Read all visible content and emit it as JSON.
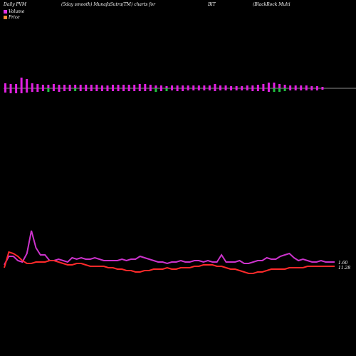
{
  "header": {
    "left": "Daily PVM",
    "mid": "(5day smooth) MunafaSutra(TM) charts for",
    "ticker": "BIT",
    "company": "(BlackRock Multi"
  },
  "legend": [
    {
      "label": "Volume",
      "color": "#e830e8"
    },
    {
      "label": "Price",
      "color": "#ff8c3a"
    }
  ],
  "colors": {
    "background": "#000000",
    "volume_up": "#e020e0",
    "volume_down": "#20c040",
    "price": "#ff2a2a",
    "pvm": "#cc33cc",
    "baseline": "#cccccc",
    "label": "#ffffff"
  },
  "chart_data": {
    "type": "line",
    "volume_bars": [
      {
        "up": 7,
        "down": 6,
        "dir": "up"
      },
      {
        "up": 6,
        "down": 7,
        "dir": "up"
      },
      {
        "up": 6,
        "down": 7,
        "dir": "up"
      },
      {
        "up": 15,
        "down": 7,
        "dir": "up"
      },
      {
        "up": 13,
        "down": 6,
        "dir": "up"
      },
      {
        "up": 7,
        "down": 5,
        "dir": "up"
      },
      {
        "up": 6,
        "down": 5,
        "dir": "up"
      },
      {
        "up": 5,
        "down": 4,
        "dir": "up"
      },
      {
        "up": 5,
        "down": 5,
        "dir": "down"
      },
      {
        "up": 6,
        "down": 4,
        "dir": "up"
      },
      {
        "up": 5,
        "down": 5,
        "dir": "up"
      },
      {
        "up": 5,
        "down": 4,
        "dir": "up"
      },
      {
        "up": 5,
        "down": 4,
        "dir": "up"
      },
      {
        "up": 5,
        "down": 4,
        "dir": "down"
      },
      {
        "up": 5,
        "down": 4,
        "dir": "up"
      },
      {
        "up": 5,
        "down": 4,
        "dir": "up"
      },
      {
        "up": 5,
        "down": 4,
        "dir": "up"
      },
      {
        "up": 5,
        "down": 4,
        "dir": "up"
      },
      {
        "up": 4,
        "down": 4,
        "dir": "up"
      },
      {
        "up": 4,
        "down": 4,
        "dir": "up"
      },
      {
        "up": 5,
        "down": 4,
        "dir": "up"
      },
      {
        "up": 5,
        "down": 4,
        "dir": "up"
      },
      {
        "up": 5,
        "down": 4,
        "dir": "up"
      },
      {
        "up": 5,
        "down": 4,
        "dir": "up"
      },
      {
        "up": 5,
        "down": 4,
        "dir": "up"
      },
      {
        "up": 6,
        "down": 4,
        "dir": "up"
      },
      {
        "up": 6,
        "down": 4,
        "dir": "up"
      },
      {
        "up": 5,
        "down": 4,
        "dir": "up"
      },
      {
        "up": 4,
        "down": 5,
        "dir": "down"
      },
      {
        "up": 4,
        "down": 4,
        "dir": "up"
      },
      {
        "up": 3,
        "down": 4,
        "dir": "down"
      },
      {
        "up": 4,
        "down": 3,
        "dir": "up"
      },
      {
        "up": 4,
        "down": 4,
        "dir": "up"
      },
      {
        "up": 4,
        "down": 4,
        "dir": "up"
      },
      {
        "up": 4,
        "down": 3,
        "dir": "up"
      },
      {
        "up": 4,
        "down": 3,
        "dir": "up"
      },
      {
        "up": 4,
        "down": 3,
        "dir": "up"
      },
      {
        "up": 4,
        "down": 3,
        "dir": "up"
      },
      {
        "up": 4,
        "down": 3,
        "dir": "up"
      },
      {
        "up": 6,
        "down": 4,
        "dir": "up"
      },
      {
        "up": 4,
        "down": 3,
        "dir": "up"
      },
      {
        "up": 4,
        "down": 3,
        "dir": "up"
      },
      {
        "up": 3,
        "down": 3,
        "dir": "up"
      },
      {
        "up": 3,
        "down": 3,
        "dir": "up"
      },
      {
        "up": 3,
        "down": 3,
        "dir": "up"
      },
      {
        "up": 4,
        "down": 3,
        "dir": "up"
      },
      {
        "up": 4,
        "down": 4,
        "dir": "up"
      },
      {
        "up": 5,
        "down": 4,
        "dir": "up"
      },
      {
        "up": 6,
        "down": 4,
        "dir": "up"
      },
      {
        "up": 8,
        "down": 5,
        "dir": "up"
      },
      {
        "up": 8,
        "down": 5,
        "dir": "down"
      },
      {
        "up": 6,
        "down": 5,
        "dir": "down"
      },
      {
        "up": 5,
        "down": 4,
        "dir": "down"
      },
      {
        "up": 4,
        "down": 3,
        "dir": "up"
      },
      {
        "up": 4,
        "down": 3,
        "dir": "up"
      },
      {
        "up": 4,
        "down": 3,
        "dir": "up"
      },
      {
        "up": 4,
        "down": 3,
        "dir": "up"
      },
      {
        "up": 3,
        "down": 3,
        "dir": "up"
      },
      {
        "up": 3,
        "down": 3,
        "dir": "up"
      },
      {
        "up": 2,
        "down": 2,
        "dir": "up"
      }
    ],
    "pvm_line": [
      372,
      360,
      360,
      366,
      368,
      356,
      324,
      348,
      358,
      358,
      366,
      366,
      364,
      366,
      368,
      362,
      364,
      362,
      364,
      364,
      362,
      364,
      366,
      366,
      366,
      366,
      364,
      366,
      364,
      364,
      360,
      362,
      364,
      366,
      368,
      368,
      370,
      368,
      368,
      366,
      368,
      368,
      366,
      366,
      368,
      366,
      368,
      368,
      358,
      368,
      368,
      368,
      366,
      370,
      370,
      368,
      366,
      366,
      362,
      364,
      364,
      360,
      358,
      356,
      362,
      366,
      364,
      366,
      368,
      368,
      366,
      368,
      368,
      368
    ],
    "price_line": [
      376,
      354,
      356,
      360,
      366,
      370,
      370,
      368,
      368,
      368,
      366,
      366,
      368,
      370,
      372,
      372,
      370,
      370,
      372,
      374,
      374,
      374,
      374,
      376,
      376,
      378,
      378,
      380,
      380,
      382,
      382,
      380,
      380,
      378,
      378,
      378,
      376,
      378,
      378,
      376,
      376,
      376,
      374,
      374,
      372,
      372,
      372,
      374,
      374,
      376,
      378,
      378,
      380,
      382,
      384,
      384,
      382,
      382,
      380,
      378,
      378,
      378,
      378,
      376,
      376,
      376,
      376,
      374,
      374,
      374,
      374,
      374,
      374,
      374
    ],
    "price_label": "1.60",
    "price_label2": "11.28"
  }
}
